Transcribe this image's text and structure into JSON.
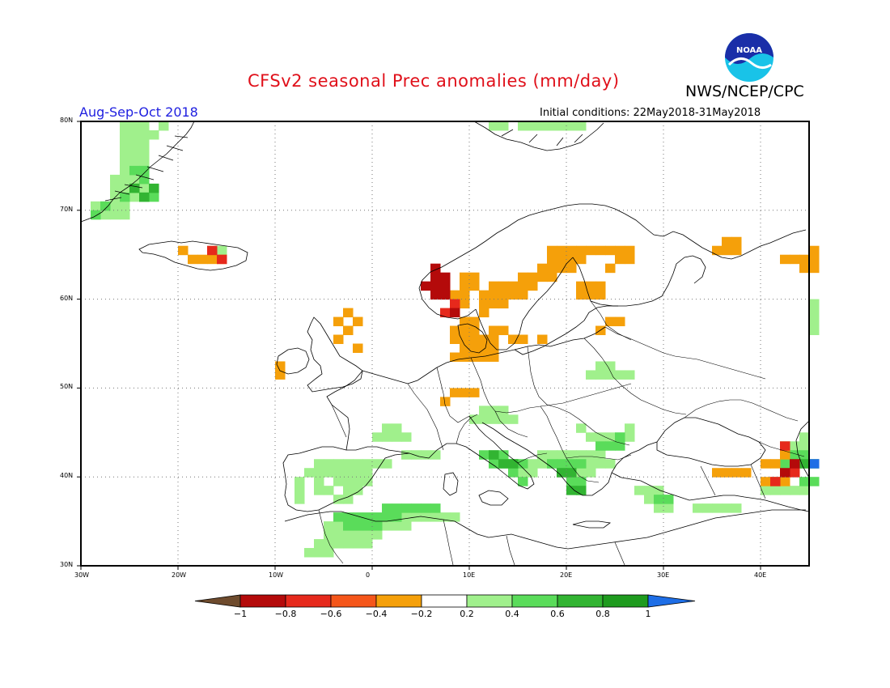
{
  "header": {
    "title": "CFSv2 seasonal Prec anomalies (mm/day)",
    "agency": "NWS/NCEP/CPC",
    "season": "Aug-Sep-Oct 2018",
    "initial_conditions": "Initial conditions: 22May2018-31May2018",
    "logo_text": "NOAA"
  },
  "map": {
    "region": "Europe",
    "lon_range": [
      -30,
      45
    ],
    "lat_range": [
      30,
      80
    ],
    "grid_style": "dotted",
    "lat_labels": [
      "80N",
      "70N",
      "60N",
      "50N",
      "40N",
      "30N"
    ],
    "lon_labels": [
      "30W",
      "20W",
      "10W",
      "0",
      "10E",
      "20E",
      "30E",
      "40E"
    ]
  },
  "colorbar": {
    "ticks": [
      "-1",
      "-0.8",
      "-0.6",
      "-0.4",
      "-0.2",
      "0.2",
      "0.4",
      "0.6",
      "0.8",
      "1"
    ],
    "colors": [
      "#6e4b2d",
      "#b40a0a",
      "#e6291c",
      "#f5561a",
      "#f5a00a",
      "#ffffff",
      "#a0f08c",
      "#5adc5a",
      "#32b432",
      "#1e9b1e",
      "#1e6ee6"
    ]
  },
  "anomaly_cells": {
    "positive_light": [
      [
        -29,
        69
      ],
      [
        -28,
        69
      ],
      [
        -27,
        69
      ],
      [
        -26,
        69
      ],
      [
        -29,
        70
      ],
      [
        -28,
        70
      ],
      [
        -27,
        70
      ],
      [
        -26,
        70
      ],
      [
        -27,
        71
      ],
      [
        -26,
        71
      ],
      [
        -25,
        71
      ],
      [
        -27,
        72
      ],
      [
        -26,
        72
      ],
      [
        -25,
        72
      ],
      [
        -24,
        72
      ],
      [
        -27,
        73
      ],
      [
        -26,
        73
      ],
      [
        -25,
        73
      ],
      [
        -24,
        73
      ],
      [
        -26,
        74
      ],
      [
        -25,
        74
      ],
      [
        -24,
        74
      ],
      [
        -26,
        75
      ],
      [
        -25,
        75
      ],
      [
        -24,
        75
      ],
      [
        -26,
        76
      ],
      [
        -25,
        76
      ],
      [
        -24,
        76
      ],
      [
        -26,
        77
      ],
      [
        -25,
        77
      ],
      [
        -24,
        77
      ],
      [
        -26,
        78
      ],
      [
        -25,
        78
      ],
      [
        -24,
        78
      ],
      [
        -26,
        79
      ],
      [
        -25,
        79
      ],
      [
        -24,
        79
      ],
      [
        -22,
        79
      ],
      [
        -23,
        78
      ],
      [
        -17,
        65
      ],
      [
        -16,
        65
      ],
      [
        12,
        79
      ],
      [
        13,
        79
      ],
      [
        15,
        79
      ],
      [
        16,
        79
      ],
      [
        17,
        79
      ],
      [
        18,
        79
      ],
      [
        19,
        79
      ],
      [
        20,
        79
      ],
      [
        21,
        79
      ],
      [
        1,
        45
      ],
      [
        2,
        45
      ],
      [
        0,
        44
      ],
      [
        1,
        44
      ],
      [
        2,
        44
      ],
      [
        3,
        44
      ],
      [
        -6,
        41
      ],
      [
        -5,
        41
      ],
      [
        -4,
        41
      ],
      [
        -3,
        41
      ],
      [
        -2,
        41
      ],
      [
        -1,
        41
      ],
      [
        0,
        41
      ],
      [
        1,
        41
      ],
      [
        -7,
        40
      ],
      [
        -6,
        40
      ],
      [
        -5,
        40
      ],
      [
        -4,
        40
      ],
      [
        -3,
        40
      ],
      [
        -2,
        40
      ],
      [
        -1,
        40
      ],
      [
        -8,
        39
      ],
      [
        -6,
        39
      ],
      [
        -4,
        39
      ],
      [
        -3,
        39
      ],
      [
        -2,
        39
      ],
      [
        -1,
        39
      ],
      [
        -8,
        38
      ],
      [
        -6,
        38
      ],
      [
        -5,
        38
      ],
      [
        -3,
        38
      ],
      [
        -2,
        38
      ],
      [
        -8,
        37
      ],
      [
        -4,
        37
      ],
      [
        -3,
        37
      ],
      [
        3,
        35
      ],
      [
        4,
        35
      ],
      [
        5,
        35
      ],
      [
        6,
        35
      ],
      [
        7,
        35
      ],
      [
        8,
        35
      ],
      [
        -5,
        34
      ],
      [
        -4,
        34
      ],
      [
        -3,
        34
      ],
      [
        1,
        34
      ],
      [
        2,
        34
      ],
      [
        3,
        34
      ],
      [
        -5,
        33
      ],
      [
        -4,
        33
      ],
      [
        -3,
        33
      ],
      [
        -2,
        33
      ],
      [
        -1,
        33
      ],
      [
        0,
        33
      ],
      [
        -6,
        32
      ],
      [
        -5,
        32
      ],
      [
        -4,
        32
      ],
      [
        -3,
        32
      ],
      [
        -2,
        32
      ],
      [
        -1,
        32
      ],
      [
        -7,
        31
      ],
      [
        -6,
        31
      ],
      [
        -5,
        31
      ],
      [
        3,
        42
      ],
      [
        4,
        42
      ],
      [
        5,
        42
      ],
      [
        6,
        42
      ],
      [
        11,
        47
      ],
      [
        12,
        47
      ],
      [
        13,
        47
      ],
      [
        10,
        46
      ],
      [
        11,
        46
      ],
      [
        12,
        46
      ],
      [
        13,
        46
      ],
      [
        14,
        46
      ],
      [
        17,
        42
      ],
      [
        18,
        42
      ],
      [
        19,
        42
      ],
      [
        20,
        42
      ],
      [
        21,
        42
      ],
      [
        22,
        42
      ],
      [
        23,
        42
      ],
      [
        16,
        41
      ],
      [
        17,
        41
      ],
      [
        18,
        41
      ],
      [
        22,
        41
      ],
      [
        23,
        41
      ],
      [
        24,
        41
      ],
      [
        15,
        40
      ],
      [
        16,
        40
      ],
      [
        20,
        40
      ],
      [
        21,
        40
      ],
      [
        22,
        40
      ],
      [
        22,
        44
      ],
      [
        23,
        44
      ],
      [
        24,
        44
      ],
      [
        25,
        44
      ],
      [
        26,
        44
      ],
      [
        21,
        45
      ],
      [
        26,
        45
      ],
      [
        22,
        51
      ],
      [
        23,
        51
      ],
      [
        24,
        51
      ],
      [
        25,
        51
      ],
      [
        26,
        51
      ],
      [
        23,
        52
      ],
      [
        24,
        52
      ],
      [
        27,
        38
      ],
      [
        28,
        38
      ],
      [
        29,
        38
      ],
      [
        28,
        37
      ],
      [
        29,
        37
      ],
      [
        30,
        37
      ],
      [
        29,
        36
      ],
      [
        30,
        36
      ],
      [
        33,
        36
      ],
      [
        34,
        36
      ],
      [
        35,
        36
      ],
      [
        36,
        36
      ],
      [
        37,
        36
      ],
      [
        40,
        38
      ],
      [
        41,
        38
      ],
      [
        42,
        38
      ],
      [
        43,
        38
      ],
      [
        44,
        38
      ],
      [
        44,
        41
      ],
      [
        44,
        42
      ],
      [
        44,
        43
      ],
      [
        42,
        43
      ],
      [
        43,
        43
      ],
      [
        44,
        44
      ],
      [
        45,
        59
      ],
      [
        45,
        58
      ],
      [
        45,
        57
      ],
      [
        45,
        56
      ]
    ],
    "positive_medium": [
      [
        -26,
        71
      ],
      [
        -25,
        72
      ],
      [
        -24,
        71
      ],
      [
        -23,
        71
      ],
      [
        -24,
        73
      ],
      [
        -25,
        74
      ],
      [
        -24,
        74
      ],
      [
        -29,
        69
      ],
      [
        -28,
        70
      ],
      [
        11,
        42
      ],
      [
        12,
        42
      ],
      [
        13,
        42
      ],
      [
        12,
        41
      ],
      [
        13,
        41
      ],
      [
        14,
        41
      ],
      [
        15,
        41
      ],
      [
        14,
        40
      ],
      [
        15,
        39
      ],
      [
        18,
        41
      ],
      [
        19,
        41
      ],
      [
        20,
        41
      ],
      [
        21,
        41
      ],
      [
        19,
        40
      ],
      [
        20,
        40
      ],
      [
        21,
        39
      ],
      [
        20,
        39
      ],
      [
        21,
        38
      ],
      [
        23,
        43
      ],
      [
        24,
        43
      ],
      [
        25,
        43
      ],
      [
        25,
        44
      ],
      [
        1,
        36
      ],
      [
        2,
        36
      ],
      [
        3,
        36
      ],
      [
        4,
        36
      ],
      [
        5,
        36
      ],
      [
        6,
        36
      ],
      [
        -4,
        35
      ],
      [
        -3,
        35
      ],
      [
        -2,
        35
      ],
      [
        -1,
        35
      ],
      [
        0,
        35
      ],
      [
        1,
        35
      ],
      [
        2,
        35
      ],
      [
        -3,
        34
      ],
      [
        -2,
        34
      ],
      [
        -1,
        34
      ],
      [
        0,
        34
      ],
      [
        29,
        37
      ],
      [
        30,
        37
      ],
      [
        43,
        42
      ],
      [
        44,
        42
      ],
      [
        42,
        41
      ],
      [
        44,
        39
      ],
      [
        45,
        39
      ]
    ],
    "positive_strong": [
      [
        -25,
        72
      ],
      [
        -24,
        71
      ],
      [
        -23,
        72
      ],
      [
        13,
        41
      ],
      [
        14,
        41
      ],
      [
        12,
        42
      ],
      [
        19,
        40
      ],
      [
        20,
        40
      ],
      [
        20,
        38
      ],
      [
        21,
        38
      ],
      [
        43,
        41
      ],
      [
        44,
        41
      ],
      [
        45,
        41
      ]
    ],
    "positive_max": [
      [
        45,
        41
      ]
    ],
    "negative_light": [
      [
        36,
        66
      ],
      [
        37,
        66
      ],
      [
        35,
        65
      ],
      [
        36,
        65
      ],
      [
        37,
        65
      ],
      [
        42,
        64
      ],
      [
        43,
        64
      ],
      [
        44,
        64
      ],
      [
        45,
        64
      ],
      [
        44,
        63
      ],
      [
        45,
        63
      ],
      [
        45,
        65
      ],
      [
        18,
        65
      ],
      [
        19,
        65
      ],
      [
        20,
        65
      ],
      [
        21,
        65
      ],
      [
        22,
        65
      ],
      [
        23,
        65
      ],
      [
        24,
        65
      ],
      [
        25,
        65
      ],
      [
        26,
        65
      ],
      [
        18,
        64
      ],
      [
        19,
        64
      ],
      [
        20,
        64
      ],
      [
        21,
        64
      ],
      [
        25,
        64
      ],
      [
        26,
        64
      ],
      [
        17,
        63
      ],
      [
        18,
        63
      ],
      [
        19,
        63
      ],
      [
        20,
        63
      ],
      [
        24,
        63
      ],
      [
        15,
        62
      ],
      [
        16,
        62
      ],
      [
        17,
        62
      ],
      [
        18,
        62
      ],
      [
        12,
        61
      ],
      [
        13,
        61
      ],
      [
        14,
        61
      ],
      [
        15,
        61
      ],
      [
        16,
        61
      ],
      [
        21,
        61
      ],
      [
        22,
        61
      ],
      [
        23,
        61
      ],
      [
        11,
        60
      ],
      [
        12,
        60
      ],
      [
        13,
        60
      ],
      [
        14,
        60
      ],
      [
        15,
        60
      ],
      [
        21,
        60
      ],
      [
        22,
        60
      ],
      [
        23,
        60
      ],
      [
        11,
        59
      ],
      [
        12,
        59
      ],
      [
        13,
        59
      ],
      [
        9,
        62
      ],
      [
        10,
        62
      ],
      [
        9,
        61
      ],
      [
        10,
        61
      ],
      [
        8,
        60
      ],
      [
        9,
        60
      ],
      [
        8,
        59
      ],
      [
        9,
        59
      ],
      [
        11,
        58
      ],
      [
        9,
        57
      ],
      [
        10,
        57
      ],
      [
        8,
        56
      ],
      [
        9,
        56
      ],
      [
        10,
        56
      ],
      [
        12,
        56
      ],
      [
        13,
        56
      ],
      [
        8,
        55
      ],
      [
        9,
        55
      ],
      [
        10,
        55
      ],
      [
        11,
        55
      ],
      [
        12,
        55
      ],
      [
        14,
        55
      ],
      [
        15,
        55
      ],
      [
        17,
        55
      ],
      [
        9,
        54
      ],
      [
        10,
        54
      ],
      [
        11,
        54
      ],
      [
        12,
        54
      ],
      [
        8,
        53
      ],
      [
        9,
        53
      ],
      [
        10,
        53
      ],
      [
        11,
        53
      ],
      [
        12,
        53
      ],
      [
        24,
        57
      ],
      [
        25,
        57
      ],
      [
        23,
        56
      ],
      [
        -3,
        58
      ],
      [
        -4,
        57
      ],
      [
        -2,
        57
      ],
      [
        -3,
        56
      ],
      [
        -4,
        55
      ],
      [
        -2,
        54
      ],
      [
        -10,
        52
      ],
      [
        -10,
        51
      ],
      [
        8,
        49
      ],
      [
        9,
        49
      ],
      [
        10,
        49
      ],
      [
        7,
        48
      ],
      [
        -20,
        65
      ],
      [
        -19,
        64
      ],
      [
        -18,
        64
      ],
      [
        -17,
        64
      ],
      [
        -16,
        64
      ],
      [
        36,
        40
      ],
      [
        37,
        40
      ],
      [
        38,
        40
      ],
      [
        35,
        40
      ],
      [
        40,
        39
      ],
      [
        41,
        39
      ],
      [
        42,
        39
      ],
      [
        40,
        41
      ],
      [
        41,
        41
      ],
      [
        42,
        42
      ]
    ],
    "negative_medium": [
      [
        -17,
        65
      ],
      [
        -16,
        64
      ],
      [
        7,
        60
      ],
      [
        8,
        59
      ],
      [
        7,
        58
      ],
      [
        41,
        39
      ],
      [
        43,
        40
      ],
      [
        42,
        43
      ]
    ],
    "negative_strong": [
      [
        6,
        63
      ],
      [
        6,
        62
      ],
      [
        7,
        62
      ],
      [
        6,
        61
      ],
      [
        7,
        61
      ],
      [
        5,
        61
      ],
      [
        6,
        60
      ],
      [
        7,
        60
      ],
      [
        8,
        58
      ],
      [
        42,
        40
      ],
      [
        43,
        41
      ]
    ]
  }
}
